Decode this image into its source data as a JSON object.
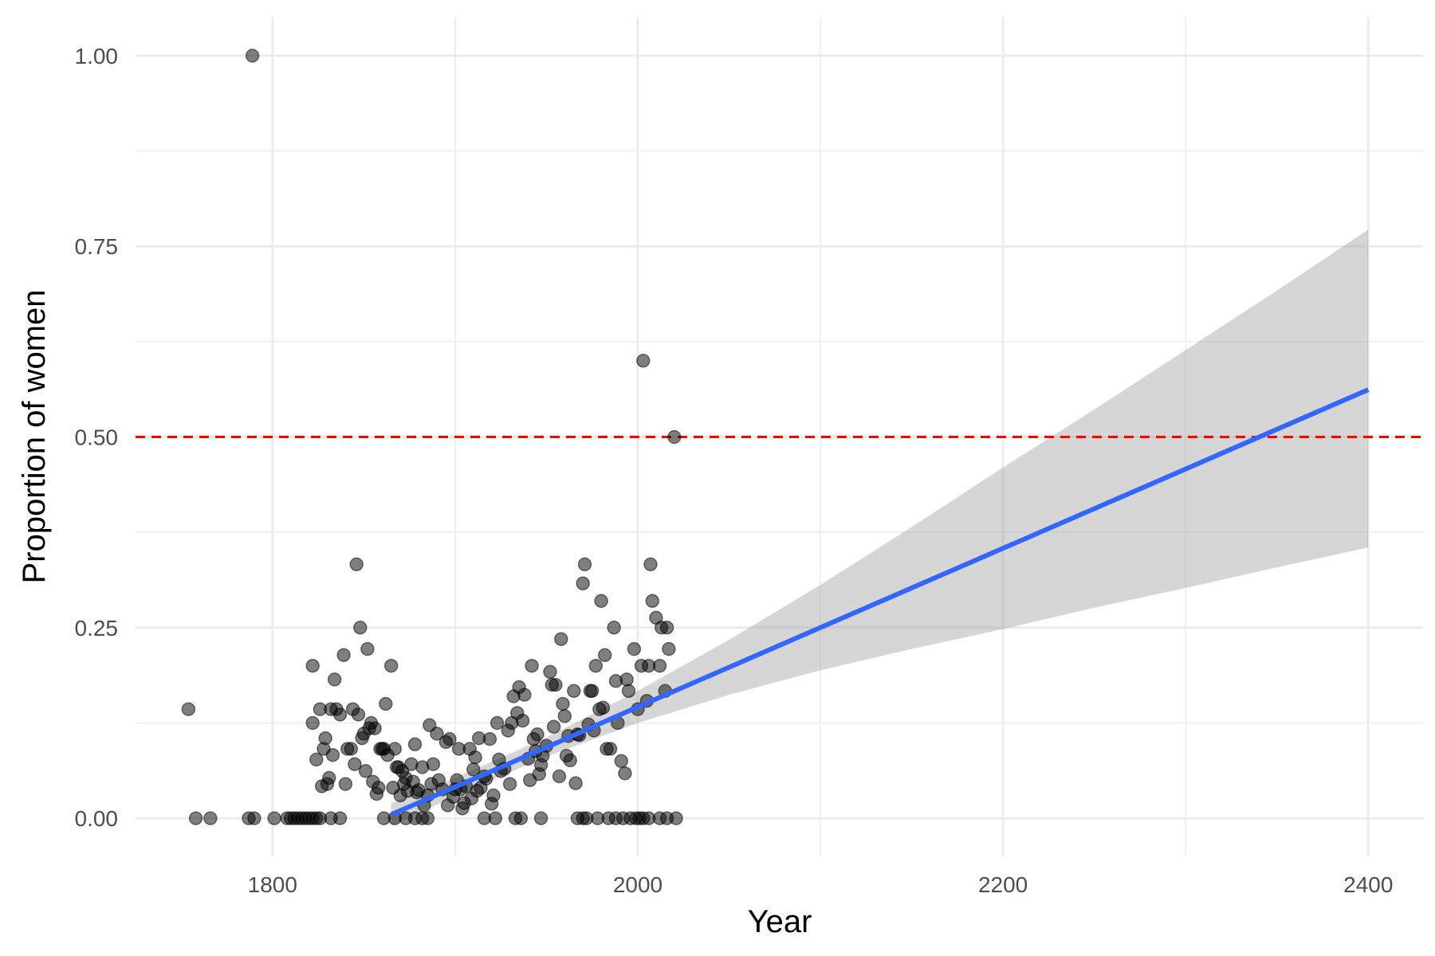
{
  "chart_data": {
    "type": "scatter",
    "title": "",
    "xlabel": "Year",
    "ylabel": "Proportion of women",
    "xlim": [
      1725,
      2430
    ],
    "ylim": [
      -0.05,
      1.05
    ],
    "x_ticks": [
      1800,
      2000,
      2200,
      2400
    ],
    "x_tick_labels": [
      "1800",
      "2000",
      "2200",
      "2400"
    ],
    "x_minor_ticks": [
      1900,
      2100,
      2300
    ],
    "y_ticks": [
      0,
      0.25,
      0.5,
      0.75,
      1
    ],
    "y_tick_labels": [
      "0.00",
      "0.25",
      "0.50",
      "0.75",
      "1.00"
    ],
    "y_minor_ticks": [
      0.125,
      0.375,
      0.625,
      0.875
    ],
    "grid": true,
    "legend": "none",
    "colors": {
      "points": "#000000",
      "trend_line": "#3366FF",
      "confidence_band": "#999999",
      "reference_line": "#FF0000",
      "grid": "#EBEBEB"
    },
    "reference_line": {
      "y": 0.5,
      "style": "dashed"
    },
    "trend": {
      "x": [
        1865,
        1900,
        1950,
        2000,
        2050,
        2100,
        2150,
        2200,
        2250,
        2300,
        2350,
        2400
      ],
      "y": [
        0.005,
        0.041,
        0.093,
        0.146,
        0.198,
        0.25,
        0.302,
        0.354,
        0.406,
        0.458,
        0.51,
        0.562
      ],
      "lower": [
        -0.01,
        0.029,
        0.081,
        0.125,
        0.162,
        0.194,
        0.222,
        0.248,
        0.276,
        0.302,
        0.329,
        0.355
      ],
      "upper": [
        0.02,
        0.053,
        0.106,
        0.167,
        0.234,
        0.306,
        0.382,
        0.46,
        0.536,
        0.614,
        0.692,
        0.772
      ]
    },
    "points": [
      [
        1789,
        1.0
      ],
      [
        1754,
        0.143
      ],
      [
        1758,
        0.0
      ],
      [
        1766,
        0.0
      ],
      [
        1787,
        0.0
      ],
      [
        1790,
        0.0
      ],
      [
        1801,
        0.0
      ],
      [
        1808,
        0.0
      ],
      [
        1810,
        0.0
      ],
      [
        1812,
        0.0
      ],
      [
        1814,
        0.0
      ],
      [
        1816,
        0.0
      ],
      [
        1818,
        0.0
      ],
      [
        1820,
        0.0
      ],
      [
        1822,
        0.0
      ],
      [
        1824,
        0.0
      ],
      [
        1826,
        0.0
      ],
      [
        1832,
        0.0
      ],
      [
        1837,
        0.0
      ],
      [
        1861,
        0.0
      ],
      [
        1867,
        0.0
      ],
      [
        1873,
        0.0
      ],
      [
        1878,
        0.0
      ],
      [
        1882,
        0.0
      ],
      [
        1885,
        0.0
      ],
      [
        1916,
        0.0
      ],
      [
        1922,
        0.0
      ],
      [
        1933,
        0.0
      ],
      [
        1936,
        0.0
      ],
      [
        1947,
        0.0
      ],
      [
        1967,
        0.0
      ],
      [
        1970,
        0.0
      ],
      [
        1972,
        0.0
      ],
      [
        1978,
        0.0
      ],
      [
        1984,
        0.0
      ],
      [
        1988,
        0.0
      ],
      [
        1992,
        0.0
      ],
      [
        1996,
        0.0
      ],
      [
        1999,
        0.0
      ],
      [
        2001,
        0.0
      ],
      [
        2003,
        0.0
      ],
      [
        2006,
        0.0
      ],
      [
        2012,
        0.0
      ],
      [
        2016,
        0.0
      ],
      [
        2021,
        0.0
      ],
      [
        1822,
        0.2
      ],
      [
        1822,
        0.125
      ],
      [
        1824,
        0.077
      ],
      [
        1826,
        0.143
      ],
      [
        1827,
        0.042
      ],
      [
        1828,
        0.091
      ],
      [
        1829,
        0.105
      ],
      [
        1830,
        0.045
      ],
      [
        1831,
        0.053
      ],
      [
        1832,
        0.143
      ],
      [
        1833,
        0.083
      ],
      [
        1834,
        0.182
      ],
      [
        1835,
        0.143
      ],
      [
        1837,
        0.136
      ],
      [
        1839,
        0.214
      ],
      [
        1840,
        0.045
      ],
      [
        1841,
        0.091
      ],
      [
        1843,
        0.091
      ],
      [
        1844,
        0.143
      ],
      [
        1845,
        0.071
      ],
      [
        1846,
        0.333
      ],
      [
        1847,
        0.136
      ],
      [
        1848,
        0.25
      ],
      [
        1849,
        0.105
      ],
      [
        1850,
        0.111
      ],
      [
        1851,
        0.062
      ],
      [
        1852,
        0.222
      ],
      [
        1853,
        0.118
      ],
      [
        1854,
        0.125
      ],
      [
        1855,
        0.048
      ],
      [
        1856,
        0.118
      ],
      [
        1857,
        0.032
      ],
      [
        1858,
        0.04
      ],
      [
        1859,
        0.091
      ],
      [
        1860,
        0.091
      ],
      [
        1861,
        0.091
      ],
      [
        1862,
        0.15
      ],
      [
        1863,
        0.083
      ],
      [
        1865,
        0.2
      ],
      [
        1866,
        0.04
      ],
      [
        1867,
        0.091
      ],
      [
        1868,
        0.067
      ],
      [
        1869,
        0.067
      ],
      [
        1870,
        0.03
      ],
      [
        1871,
        0.062
      ],
      [
        1872,
        0.045
      ],
      [
        1873,
        0.053
      ],
      [
        1874,
        0.036
      ],
      [
        1876,
        0.071
      ],
      [
        1877,
        0.048
      ],
      [
        1878,
        0.097
      ],
      [
        1879,
        0.034
      ],
      [
        1880,
        0.037
      ],
      [
        1882,
        0.067
      ],
      [
        1883,
        0.017
      ],
      [
        1885,
        0.03
      ],
      [
        1886,
        0.122
      ],
      [
        1887,
        0.045
      ],
      [
        1888,
        0.071
      ],
      [
        1890,
        0.111
      ],
      [
        1891,
        0.05
      ],
      [
        1893,
        0.038
      ],
      [
        1895,
        0.1
      ],
      [
        1896,
        0.017
      ],
      [
        1897,
        0.104
      ],
      [
        1899,
        0.028
      ],
      [
        1900,
        0.038
      ],
      [
        1901,
        0.05
      ],
      [
        1902,
        0.091
      ],
      [
        1903,
        0.038
      ],
      [
        1904,
        0.013
      ],
      [
        1905,
        0.02
      ],
      [
        1906,
        0.042
      ],
      [
        1908,
        0.091
      ],
      [
        1909,
        0.026
      ],
      [
        1910,
        0.064
      ],
      [
        1911,
        0.08
      ],
      [
        1912,
        0.036
      ],
      [
        1913,
        0.105
      ],
      [
        1914,
        0.04
      ],
      [
        1916,
        0.055
      ],
      [
        1917,
        0.052
      ],
      [
        1919,
        0.104
      ],
      [
        1920,
        0.019
      ],
      [
        1921,
        0.03
      ],
      [
        1923,
        0.125
      ],
      [
        1924,
        0.077
      ],
      [
        1925,
        0.062
      ],
      [
        1927,
        0.065
      ],
      [
        1929,
        0.115
      ],
      [
        1930,
        0.045
      ],
      [
        1931,
        0.125
      ],
      [
        1932,
        0.16
      ],
      [
        1934,
        0.138
      ],
      [
        1935,
        0.172
      ],
      [
        1937,
        0.128
      ],
      [
        1938,
        0.162
      ],
      [
        1940,
        0.078
      ],
      [
        1941,
        0.05
      ],
      [
        1942,
        0.2
      ],
      [
        1943,
        0.104
      ],
      [
        1944,
        0.088
      ],
      [
        1945,
        0.11
      ],
      [
        1946,
        0.058
      ],
      [
        1947,
        0.07
      ],
      [
        1948,
        0.082
      ],
      [
        1950,
        0.095
      ],
      [
        1952,
        0.192
      ],
      [
        1953,
        0.175
      ],
      [
        1954,
        0.12
      ],
      [
        1955,
        0.175
      ],
      [
        1957,
        0.055
      ],
      [
        1958,
        0.235
      ],
      [
        1959,
        0.15
      ],
      [
        1960,
        0.134
      ],
      [
        1961,
        0.082
      ],
      [
        1962,
        0.108
      ],
      [
        1963,
        0.076
      ],
      [
        1965,
        0.167
      ],
      [
        1966,
        0.046
      ],
      [
        1967,
        0.11
      ],
      [
        1968,
        0.109
      ],
      [
        1970,
        0.308
      ],
      [
        1971,
        0.333
      ],
      [
        1973,
        0.123
      ],
      [
        1974,
        0.167
      ],
      [
        1975,
        0.167
      ],
      [
        1976,
        0.115
      ],
      [
        1977,
        0.2
      ],
      [
        1979,
        0.143
      ],
      [
        1980,
        0.285
      ],
      [
        1981,
        0.145
      ],
      [
        1982,
        0.214
      ],
      [
        1983,
        0.091
      ],
      [
        1985,
        0.091
      ],
      [
        1987,
        0.25
      ],
      [
        1988,
        0.18
      ],
      [
        1989,
        0.125
      ],
      [
        1991,
        0.075
      ],
      [
        1993,
        0.059
      ],
      [
        1994,
        0.182
      ],
      [
        1995,
        0.167
      ],
      [
        1998,
        0.222
      ],
      [
        2000,
        0.143
      ],
      [
        2002,
        0.2
      ],
      [
        2003,
        0.6
      ],
      [
        2005,
        0.154
      ],
      [
        2006,
        0.2
      ],
      [
        2007,
        0.333
      ],
      [
        2008,
        0.285
      ],
      [
        2010,
        0.263
      ],
      [
        2012,
        0.2
      ],
      [
        2013,
        0.25
      ],
      [
        2015,
        0.167
      ],
      [
        2016,
        0.25
      ],
      [
        2017,
        0.222
      ],
      [
        2020,
        0.5
      ]
    ]
  }
}
